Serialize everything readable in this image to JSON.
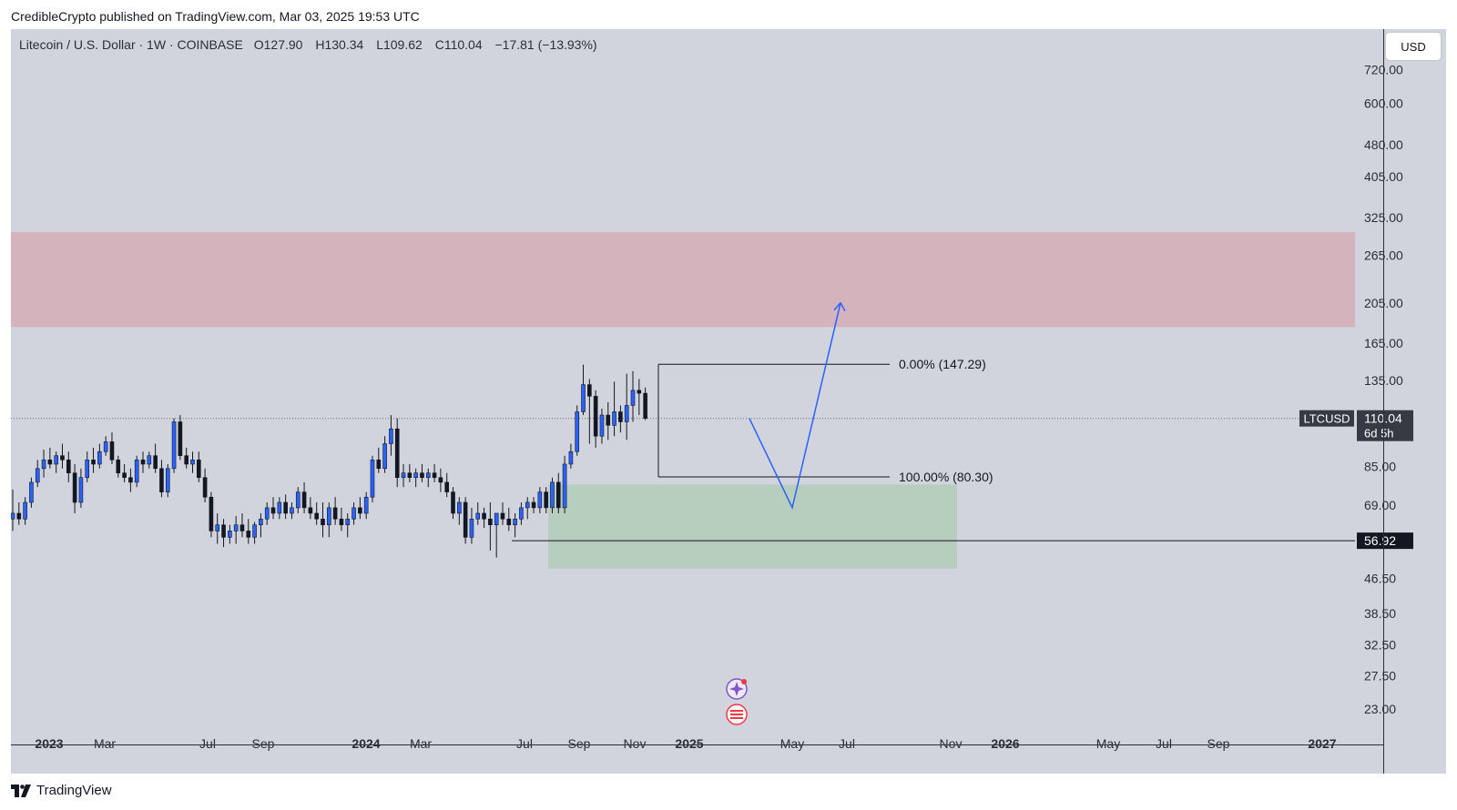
{
  "header": {
    "published": "CredibleCrypto published on TradingView.com, Mar 03, 2025 19:53 UTC"
  },
  "legend": {
    "pair": "Litecoin / U.S. Dollar · 1W · COINBASE",
    "open_label": "O",
    "open": "127.90",
    "high_label": "H",
    "high": "130.34",
    "low_label": "L",
    "low": "109.62",
    "close_label": "C",
    "close": "110.04",
    "change": "−17.81 (−13.93%)"
  },
  "currency": "USD",
  "footer": {
    "brand": "TradingView"
  },
  "chart_data": {
    "type": "candlestick",
    "title": "",
    "scale": "log",
    "symbol": "LTCUSD",
    "price_ticks": [
      "720.00",
      "600.00",
      "480.00",
      "405.00",
      "325.00",
      "265.00",
      "205.00",
      "165.00",
      "135.00",
      "110.00",
      "85.00",
      "69.00",
      "56.92",
      "46.50",
      "38.50",
      "32.50",
      "27.50",
      "23.00"
    ],
    "time_ticks": [
      {
        "label": "2023",
        "bold": true
      },
      {
        "label": "Mar",
        "bold": false
      },
      {
        "label": "Jul",
        "bold": false
      },
      {
        "label": "Sep",
        "bold": false
      },
      {
        "label": "2024",
        "bold": true
      },
      {
        "label": "Mar",
        "bold": false
      },
      {
        "label": "Jul",
        "bold": false
      },
      {
        "label": "Sep",
        "bold": false
      },
      {
        "label": "Nov",
        "bold": false
      },
      {
        "label": "2025",
        "bold": true
      },
      {
        "label": "May",
        "bold": false
      },
      {
        "label": "Jul",
        "bold": false
      },
      {
        "label": "Nov",
        "bold": false
      },
      {
        "label": "2026",
        "bold": true
      },
      {
        "label": "May",
        "bold": false
      },
      {
        "label": "Jul",
        "bold": false
      },
      {
        "label": "Sep",
        "bold": false
      },
      {
        "label": "2027",
        "bold": true
      }
    ],
    "current_price": {
      "symbol": "LTCUSD",
      "value": "110.04",
      "countdown": "6d 5h"
    },
    "horizontal_line": {
      "value": "56.92"
    },
    "zones": [
      {
        "name": "resistance",
        "from": 180,
        "to": 300,
        "color": "#d4b3bd"
      },
      {
        "name": "support",
        "from": 49,
        "to": 77,
        "color": "#b7cdbd"
      }
    ],
    "fib_levels": [
      {
        "label": "0.00% (147.29)",
        "value": 147.29
      },
      {
        "label": "100.00% (80.30)",
        "value": 80.3
      }
    ],
    "projection_path": [
      110,
      68,
      205
    ],
    "candles": [
      [
        64,
        75,
        60,
        66
      ],
      [
        66,
        70,
        62,
        64
      ],
      [
        64,
        72,
        62,
        70
      ],
      [
        70,
        80,
        68,
        78
      ],
      [
        78,
        88,
        76,
        84
      ],
      [
        84,
        93,
        80,
        88
      ],
      [
        88,
        94,
        84,
        86
      ],
      [
        86,
        92,
        82,
        90
      ],
      [
        90,
        96,
        84,
        88
      ],
      [
        88,
        92,
        78,
        82
      ],
      [
        82,
        86,
        66,
        70
      ],
      [
        70,
        84,
        68,
        80
      ],
      [
        80,
        92,
        78,
        88
      ],
      [
        88,
        94,
        82,
        86
      ],
      [
        86,
        96,
        84,
        92
      ],
      [
        92,
        100,
        90,
        97
      ],
      [
        97,
        102,
        86,
        88
      ],
      [
        88,
        90,
        80,
        82
      ],
      [
        82,
        86,
        78,
        80
      ],
      [
        80,
        84,
        74,
        78
      ],
      [
        78,
        90,
        76,
        88
      ],
      [
        88,
        92,
        82,
        86
      ],
      [
        86,
        92,
        84,
        90
      ],
      [
        90,
        96,
        82,
        84
      ],
      [
        84,
        88,
        72,
        74
      ],
      [
        74,
        86,
        72,
        84
      ],
      [
        84,
        110,
        82,
        108
      ],
      [
        108,
        112,
        88,
        90
      ],
      [
        90,
        94,
        84,
        86
      ],
      [
        86,
        92,
        82,
        88
      ],
      [
        88,
        92,
        78,
        80
      ],
      [
        80,
        84,
        70,
        72
      ],
      [
        72,
        74,
        58,
        60
      ],
      [
        60,
        66,
        56,
        62
      ],
      [
        62,
        64,
        55,
        58
      ],
      [
        58,
        62,
        56,
        60
      ],
      [
        60,
        65,
        56,
        62
      ],
      [
        62,
        66,
        58,
        60
      ],
      [
        60,
        64,
        56,
        58
      ],
      [
        58,
        63,
        56,
        62
      ],
      [
        62,
        66,
        58,
        64
      ],
      [
        64,
        70,
        62,
        68
      ],
      [
        68,
        72,
        64,
        66
      ],
      [
        66,
        72,
        64,
        70
      ],
      [
        70,
        73,
        64,
        66
      ],
      [
        66,
        70,
        64,
        68
      ],
      [
        68,
        76,
        66,
        74
      ],
      [
        74,
        78,
        66,
        68
      ],
      [
        68,
        72,
        64,
        66
      ],
      [
        66,
        70,
        62,
        64
      ],
      [
        64,
        70,
        58,
        62
      ],
      [
        62,
        70,
        58,
        68
      ],
      [
        68,
        72,
        62,
        64
      ],
      [
        64,
        68,
        60,
        62
      ],
      [
        62,
        66,
        58,
        64
      ],
      [
        64,
        70,
        62,
        68
      ],
      [
        68,
        72,
        64,
        66
      ],
      [
        66,
        74,
        64,
        72
      ],
      [
        72,
        90,
        70,
        88
      ],
      [
        88,
        94,
        82,
        84
      ],
      [
        84,
        100,
        82,
        96
      ],
      [
        96,
        112,
        90,
        104
      ],
      [
        104,
        110,
        76,
        80
      ],
      [
        80,
        86,
        76,
        82
      ],
      [
        82,
        86,
        78,
        80
      ],
      [
        80,
        84,
        76,
        82
      ],
      [
        82,
        86,
        78,
        80
      ],
      [
        80,
        84,
        76,
        82
      ],
      [
        82,
        86,
        78,
        80
      ],
      [
        80,
        84,
        74,
        78
      ],
      [
        78,
        82,
        72,
        74
      ],
      [
        74,
        76,
        64,
        66
      ],
      [
        66,
        72,
        62,
        70
      ],
      [
        70,
        72,
        56,
        58
      ],
      [
        58,
        68,
        56,
        64
      ],
      [
        64,
        70,
        62,
        66
      ],
      [
        66,
        68,
        61,
        64
      ],
      [
        64,
        70,
        54,
        62
      ],
      [
        62,
        66,
        52,
        66
      ],
      [
        66,
        70,
        62,
        64
      ],
      [
        64,
        68,
        60,
        62
      ],
      [
        62,
        66,
        58,
        64
      ],
      [
        64,
        70,
        62,
        68
      ],
      [
        68,
        72,
        64,
        70
      ],
      [
        70,
        72,
        66,
        68
      ],
      [
        68,
        76,
        66,
        74
      ],
      [
        74,
        76,
        66,
        68
      ],
      [
        68,
        80,
        66,
        78
      ],
      [
        78,
        82,
        66,
        68
      ],
      [
        68,
        90,
        66,
        86
      ],
      [
        86,
        96,
        84,
        92
      ],
      [
        92,
        118,
        90,
        114
      ],
      [
        114,
        147,
        112,
        132
      ],
      [
        132,
        136,
        96,
        124
      ],
      [
        124,
        128,
        94,
        100
      ],
      [
        100,
        116,
        96,
        112
      ],
      [
        112,
        120,
        98,
        106
      ],
      [
        106,
        134,
        100,
        114
      ],
      [
        114,
        118,
        102,
        108
      ],
      [
        108,
        140,
        98,
        118
      ],
      [
        118,
        142,
        108,
        128
      ],
      [
        128,
        136,
        112,
        126
      ],
      [
        126,
        130,
        109,
        110
      ]
    ]
  }
}
